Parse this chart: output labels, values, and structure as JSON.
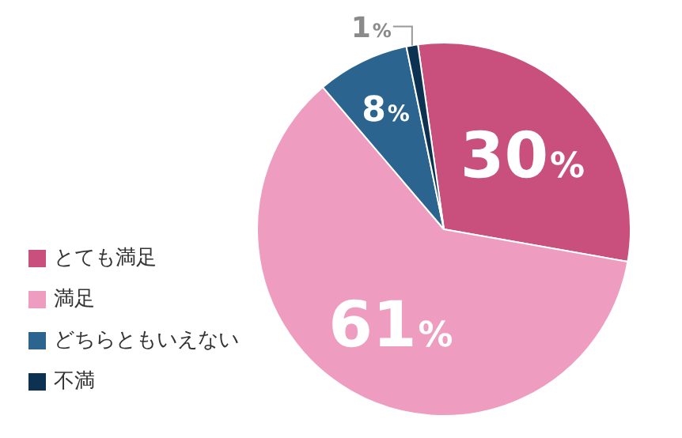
{
  "chart_data": {
    "type": "pie",
    "categories": [
      "とても満足",
      "満足",
      "どちらともいえない",
      "不満"
    ],
    "values": [
      30,
      61,
      8,
      1
    ],
    "colors": [
      "#c94f7c",
      "#ee9cbf",
      "#2c6490",
      "#0d3150"
    ],
    "value_labels": [
      "30%",
      "61%",
      "8%",
      "1%"
    ],
    "legend": "bottom left"
  }
}
